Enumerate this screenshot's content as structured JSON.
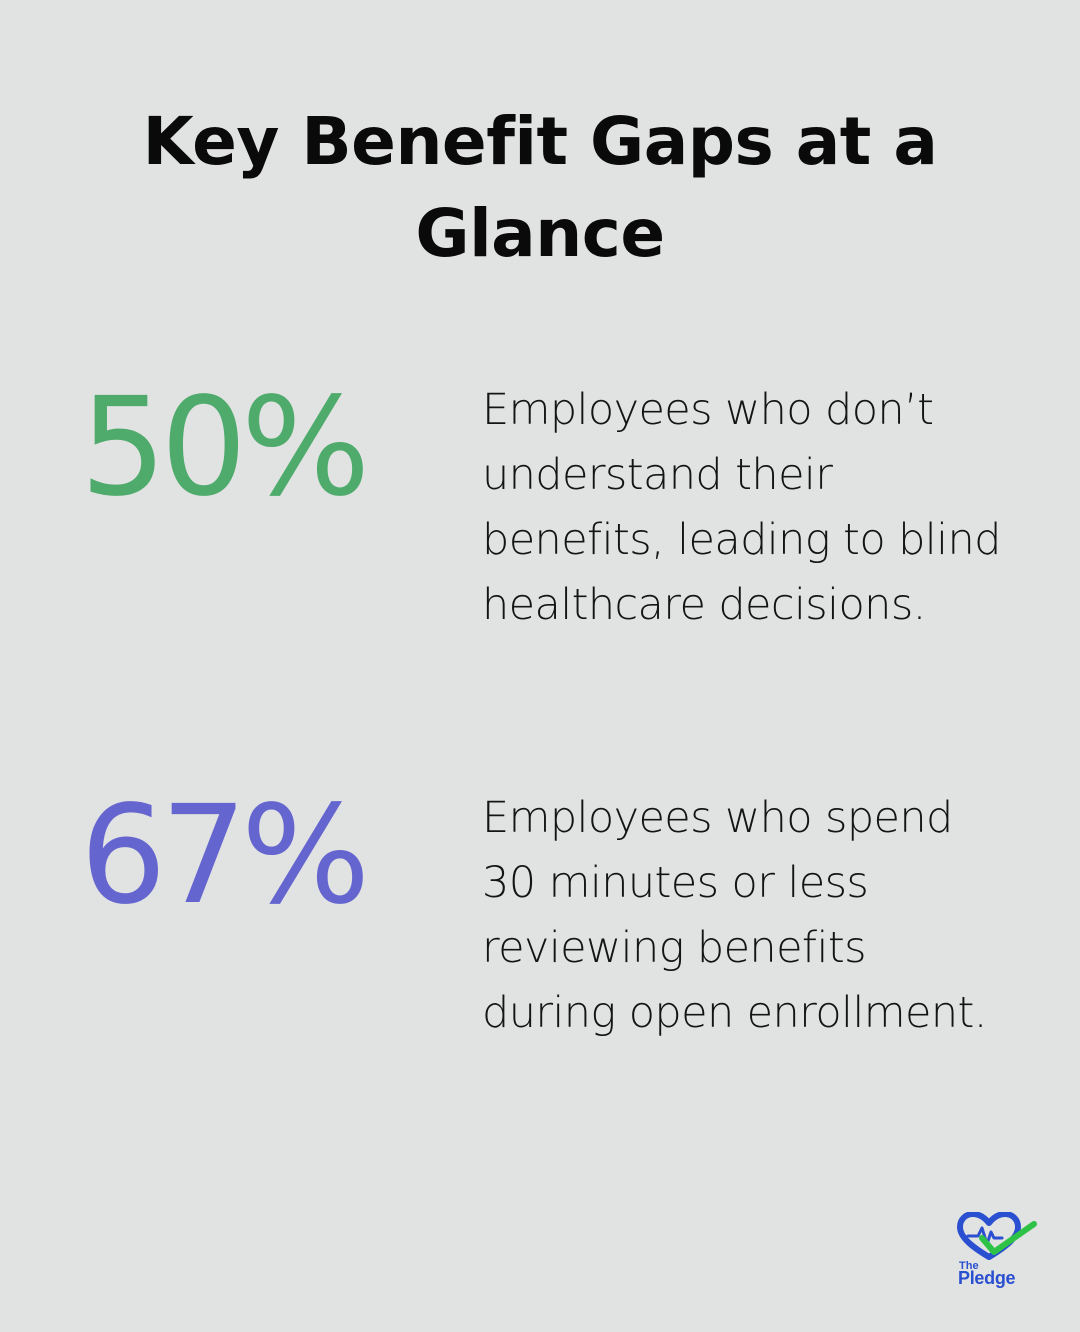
{
  "title": "Key Benefit Gaps at a Glance",
  "stats": [
    {
      "value": "50%",
      "color": "#4eab6c",
      "description": "Employees who don’t understand their benefits, leading to blind healthcare decisions."
    },
    {
      "value": "67%",
      "color": "#6565cf",
      "description": "Employees who spend 30 minutes or less reviewing benefits during open enrollment."
    }
  ],
  "logo": {
    "small_text": "The",
    "brand_text": "Pledge",
    "heart_color": "#2a4fd0",
    "check_color": "#2ec246",
    "icons": [
      "heart-icon",
      "checkmark-icon"
    ]
  }
}
